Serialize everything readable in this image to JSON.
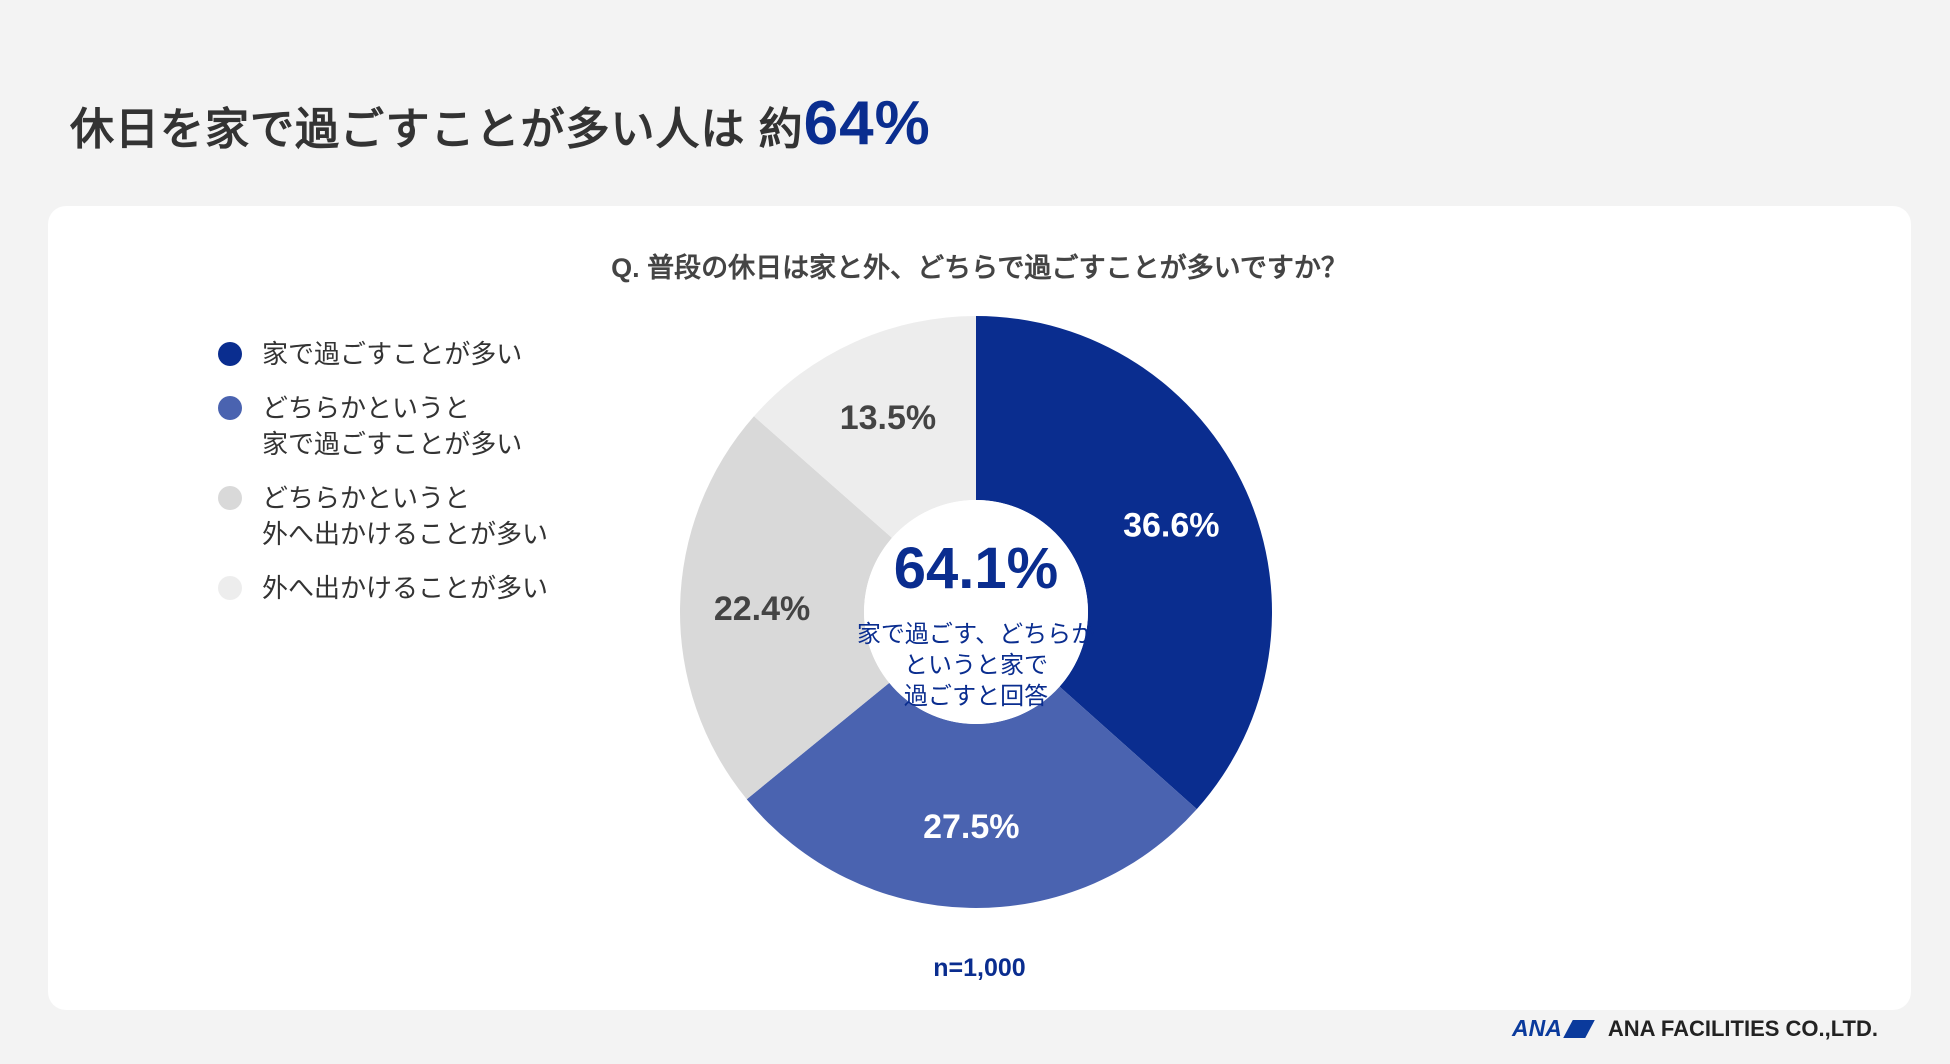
{
  "header": {
    "title_main": "休日を家で過ごすことが多い人は 約",
    "title_highlight": "64%"
  },
  "question": "Q. 普段の休日は家と外、どちらで過ごすことが多いですか？",
  "legend": [
    {
      "lines": [
        "家で過ごすことが多い"
      ],
      "color": "#0a2d8f"
    },
    {
      "lines": [
        "どちらかというと",
        "家で過ごすことが多い"
      ],
      "color": "#4a63b0"
    },
    {
      "lines": [
        "どちらかというと",
        "外へ出かけることが多い"
      ],
      "color": "#d9d9d9"
    },
    {
      "lines": [
        "外へ出かけることが多い"
      ],
      "color": "#ededed"
    }
  ],
  "chart_data": {
    "type": "pie",
    "style": "donut",
    "title": "Q. 普段の休日は家と外、どちらで過ごすことが多いですか？",
    "categories": [
      "家で過ごすことが多い",
      "どちらかというと家で過ごすことが多い",
      "どちらかというと外へ出かけることが多い",
      "外へ出かけることが多い"
    ],
    "values": [
      36.6,
      27.5,
      22.4,
      13.5
    ],
    "labels": [
      "36.6%",
      "27.5%",
      "22.4%",
      "13.5%"
    ],
    "colors": [
      "#0a2d8f",
      "#4a63b0",
      "#d9d9d9",
      "#ededed"
    ],
    "label_colors": [
      "#ffffff",
      "#ffffff",
      "#444444",
      "#444444"
    ],
    "center_value": "64.1%",
    "center_text": [
      "家で過ごす、どちらか",
      "というと家で",
      "過ごすと回答"
    ],
    "sample_size": "n=1,000"
  },
  "footer": {
    "logo": "ANA",
    "company": "ANA FACILITIES CO.,LTD."
  }
}
